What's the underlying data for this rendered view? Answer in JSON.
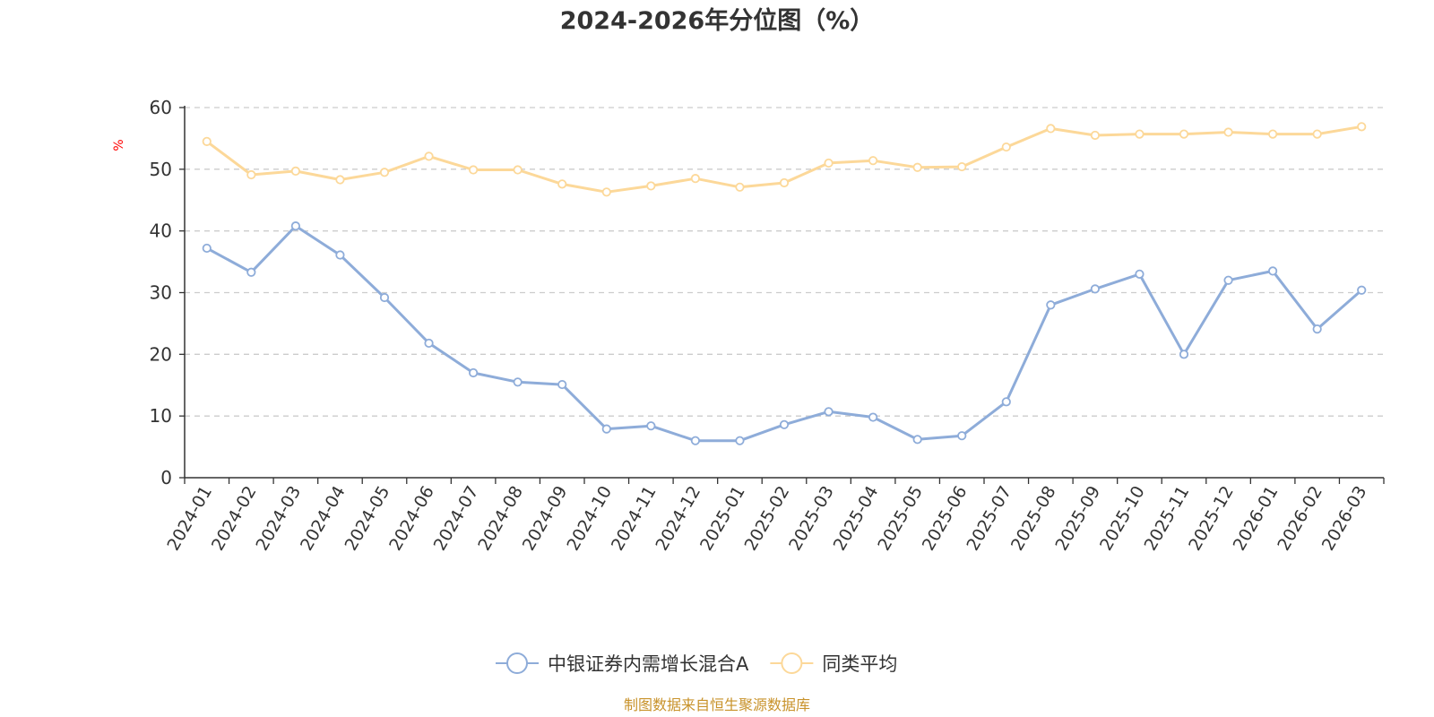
{
  "chart_data": {
    "type": "line",
    "title": "2024-2026年分位图（%）",
    "ylabel": "%",
    "xlabel": "",
    "ylim": [
      0,
      60
    ],
    "yticks": [
      0,
      10,
      20,
      30,
      40,
      50,
      60
    ],
    "grid": true,
    "legend_position": "bottom",
    "categories": [
      "2024-01",
      "2024-02",
      "2024-03",
      "2024-04",
      "2024-05",
      "2024-06",
      "2024-07",
      "2024-08",
      "2024-09",
      "2024-10",
      "2024-11",
      "2024-12",
      "2025-01",
      "2025-02",
      "2025-03",
      "2025-04",
      "2025-05",
      "2025-06",
      "2025-07",
      "2025-08",
      "2025-09",
      "2025-10",
      "2025-11",
      "2025-12",
      "2026-01",
      "2026-02",
      "2026-03"
    ],
    "series": [
      {
        "name": "中银证券内需增长混合A",
        "color": "#8eacd9",
        "values": [
          37.2,
          33.3,
          40.8,
          36.1,
          29.2,
          21.8,
          17.0,
          15.5,
          15.1,
          7.9,
          8.4,
          6.0,
          6.0,
          8.6,
          10.7,
          9.8,
          6.2,
          6.8,
          12.3,
          28.0,
          30.6,
          33.0,
          20.0,
          32.0,
          33.5,
          24.1,
          30.4
        ]
      },
      {
        "name": "同类平均",
        "color": "#fcd899",
        "values": [
          54.5,
          49.1,
          49.7,
          48.3,
          49.5,
          52.1,
          49.9,
          49.9,
          47.6,
          46.3,
          47.3,
          48.5,
          47.1,
          47.8,
          51.0,
          51.4,
          50.3,
          50.4,
          53.6,
          56.6,
          55.5,
          55.7,
          55.7,
          56.0,
          55.7,
          55.7,
          56.9
        ]
      }
    ]
  },
  "source_note": "制图数据来自恒生聚源数据库"
}
